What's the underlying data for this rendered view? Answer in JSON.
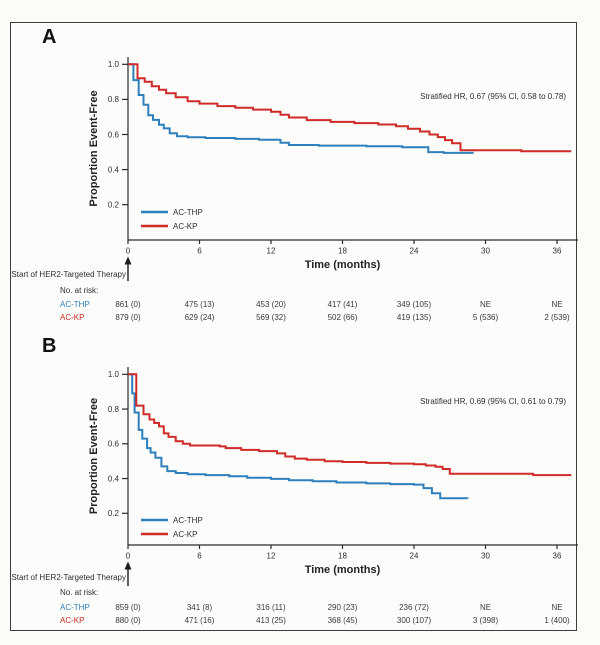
{
  "figure": {
    "background": "#fcfcfa",
    "border_color": "#3d3d3d",
    "accent_blue": "#2e80bd",
    "accent_red": "#cf2b28"
  },
  "chart_data": [
    {
      "type": "line",
      "subtype": "kaplan-meier-step",
      "panel_label": "A",
      "title": "",
      "xlabel": "Time (months)",
      "ylabel": "Proportion Event-Free",
      "xlim": [
        0,
        37.8
      ],
      "ylim": [
        0,
        1.0
      ],
      "xticks": [
        0,
        6,
        12,
        18,
        24,
        30,
        36
      ],
      "yticks": [
        0.2,
        0.4,
        0.6,
        0.8,
        1.0
      ],
      "grid": false,
      "legend_position": "lower-left",
      "annotation": "Stratified HR, 0.67 (95% CI, 0.58 to 0.78)",
      "event_marker": "Start of HER2-Targeted Therapy",
      "series": [
        {
          "name": "AC-THP",
          "color": "#2e80bd",
          "steps": [
            [
              0,
              1.0
            ],
            [
              0.45,
              0.91
            ],
            [
              0.9,
              0.825
            ],
            [
              1.3,
              0.77
            ],
            [
              1.7,
              0.71
            ],
            [
              2.1,
              0.683
            ],
            [
              2.6,
              0.655
            ],
            [
              3.0,
              0.635
            ],
            [
              3.5,
              0.607
            ],
            [
              4.1,
              0.59
            ],
            [
              5.0,
              0.584
            ],
            [
              6.5,
              0.58
            ],
            [
              9.0,
              0.575
            ],
            [
              11.0,
              0.57
            ],
            [
              12.8,
              0.553
            ],
            [
              13.5,
              0.54
            ],
            [
              16.0,
              0.537
            ],
            [
              20.0,
              0.533
            ],
            [
              23.0,
              0.527
            ],
            [
              25.2,
              0.5
            ],
            [
              26.5,
              0.495
            ],
            [
              29.0,
              0.495
            ]
          ]
        },
        {
          "name": "AC-KP",
          "color": "#cf2b28",
          "steps": [
            [
              0,
              1.0
            ],
            [
              0.8,
              0.92
            ],
            [
              1.4,
              0.9
            ],
            [
              2.0,
              0.875
            ],
            [
              2.6,
              0.855
            ],
            [
              3.2,
              0.835
            ],
            [
              4.0,
              0.812
            ],
            [
              5.0,
              0.79
            ],
            [
              6.0,
              0.776
            ],
            [
              7.5,
              0.762
            ],
            [
              9.0,
              0.752
            ],
            [
              10.5,
              0.742
            ],
            [
              12.0,
              0.73
            ],
            [
              12.8,
              0.712
            ],
            [
              13.5,
              0.697
            ],
            [
              15.0,
              0.682
            ],
            [
              17.0,
              0.672
            ],
            [
              19.0,
              0.665
            ],
            [
              21.0,
              0.657
            ],
            [
              22.5,
              0.647
            ],
            [
              23.5,
              0.633
            ],
            [
              24.5,
              0.617
            ],
            [
              25.3,
              0.6
            ],
            [
              26.0,
              0.585
            ],
            [
              26.6,
              0.568
            ],
            [
              27.2,
              0.55
            ],
            [
              27.9,
              0.51
            ],
            [
              33.0,
              0.505
            ],
            [
              37.2,
              0.505
            ]
          ]
        }
      ],
      "risk_table": {
        "header": "No. at risk:",
        "time_points": [
          0,
          6,
          12,
          18,
          24,
          30,
          36
        ],
        "rows": [
          {
            "name": "AC-THP",
            "color": "#2e80bd",
            "values": [
              "861 (0)",
              "475 (13)",
              "453 (20)",
              "417 (41)",
              "349 (105)",
              "NE",
              "NE"
            ]
          },
          {
            "name": "AC-KP",
            "color": "#cf2b28",
            "values": [
              "879 (0)",
              "629 (24)",
              "569 (32)",
              "502 (66)",
              "419 (135)",
              "5 (536)",
              "2 (539)"
            ]
          }
        ]
      }
    },
    {
      "type": "line",
      "subtype": "kaplan-meier-step",
      "panel_label": "B",
      "title": "",
      "xlabel": "Time (months)",
      "ylabel": "Proportion Event-Free",
      "xlim": [
        0,
        37.8
      ],
      "ylim": [
        0,
        1.0
      ],
      "xticks": [
        0,
        6,
        12,
        18,
        24,
        30,
        36
      ],
      "yticks": [
        0.2,
        0.4,
        0.6,
        0.8,
        1.0
      ],
      "grid": false,
      "legend_position": "lower-left",
      "annotation": "Stratified HR, 0.69 (95% CI, 0.61 to 0.79)",
      "event_marker": "Start of HER2-Targeted Therapy",
      "series": [
        {
          "name": "AC-THP",
          "color": "#2e80bd",
          "steps": [
            [
              0,
              1.0
            ],
            [
              0.35,
              0.89
            ],
            [
              0.55,
              0.78
            ],
            [
              0.9,
              0.68
            ],
            [
              1.2,
              0.63
            ],
            [
              1.6,
              0.575
            ],
            [
              1.9,
              0.55
            ],
            [
              2.3,
              0.52
            ],
            [
              2.8,
              0.47
            ],
            [
              3.3,
              0.443
            ],
            [
              4.0,
              0.432
            ],
            [
              5.0,
              0.425
            ],
            [
              6.5,
              0.42
            ],
            [
              8.5,
              0.413
            ],
            [
              10.0,
              0.405
            ],
            [
              12.0,
              0.398
            ],
            [
              13.5,
              0.39
            ],
            [
              15.5,
              0.384
            ],
            [
              17.5,
              0.377
            ],
            [
              20.0,
              0.372
            ],
            [
              22.0,
              0.368
            ],
            [
              24.0,
              0.365
            ],
            [
              24.8,
              0.345
            ],
            [
              25.5,
              0.315
            ],
            [
              26.2,
              0.287
            ],
            [
              28.5,
              0.285
            ]
          ]
        },
        {
          "name": "AC-KP",
          "color": "#cf2b28",
          "steps": [
            [
              0,
              1.0
            ],
            [
              0.7,
              0.82
            ],
            [
              1.3,
              0.77
            ],
            [
              1.8,
              0.74
            ],
            [
              2.2,
              0.72
            ],
            [
              2.6,
              0.7
            ],
            [
              3.0,
              0.66
            ],
            [
              3.4,
              0.64
            ],
            [
              4.0,
              0.615
            ],
            [
              4.6,
              0.6
            ],
            [
              5.2,
              0.59
            ],
            [
              7.7,
              0.585
            ],
            [
              8.2,
              0.575
            ],
            [
              9.5,
              0.565
            ],
            [
              11.0,
              0.558
            ],
            [
              12.5,
              0.545
            ],
            [
              13.2,
              0.527
            ],
            [
              14.0,
              0.515
            ],
            [
              15.0,
              0.508
            ],
            [
              16.5,
              0.5
            ],
            [
              18.0,
              0.495
            ],
            [
              20.0,
              0.49
            ],
            [
              22.0,
              0.486
            ],
            [
              24.0,
              0.482
            ],
            [
              25.0,
              0.475
            ],
            [
              25.8,
              0.468
            ],
            [
              26.4,
              0.455
            ],
            [
              27.0,
              0.428
            ],
            [
              34.0,
              0.42
            ],
            [
              37.2,
              0.42
            ]
          ]
        }
      ],
      "risk_table": {
        "header": "No. at risk:",
        "time_points": [
          0,
          6,
          12,
          18,
          24,
          30,
          36
        ],
        "rows": [
          {
            "name": "AC-THP",
            "color": "#2e80bd",
            "values": [
              "859 (0)",
              "341 (8)",
              "316 (11)",
              "290 (23)",
              "236 (72)",
              "NE",
              "NE"
            ]
          },
          {
            "name": "AC-KP",
            "color": "#cf2b28",
            "values": [
              "880 (0)",
              "471 (16)",
              "413 (25)",
              "368 (45)",
              "300 (107)",
              "3 (398)",
              "1 (400)"
            ]
          }
        ]
      }
    }
  ]
}
